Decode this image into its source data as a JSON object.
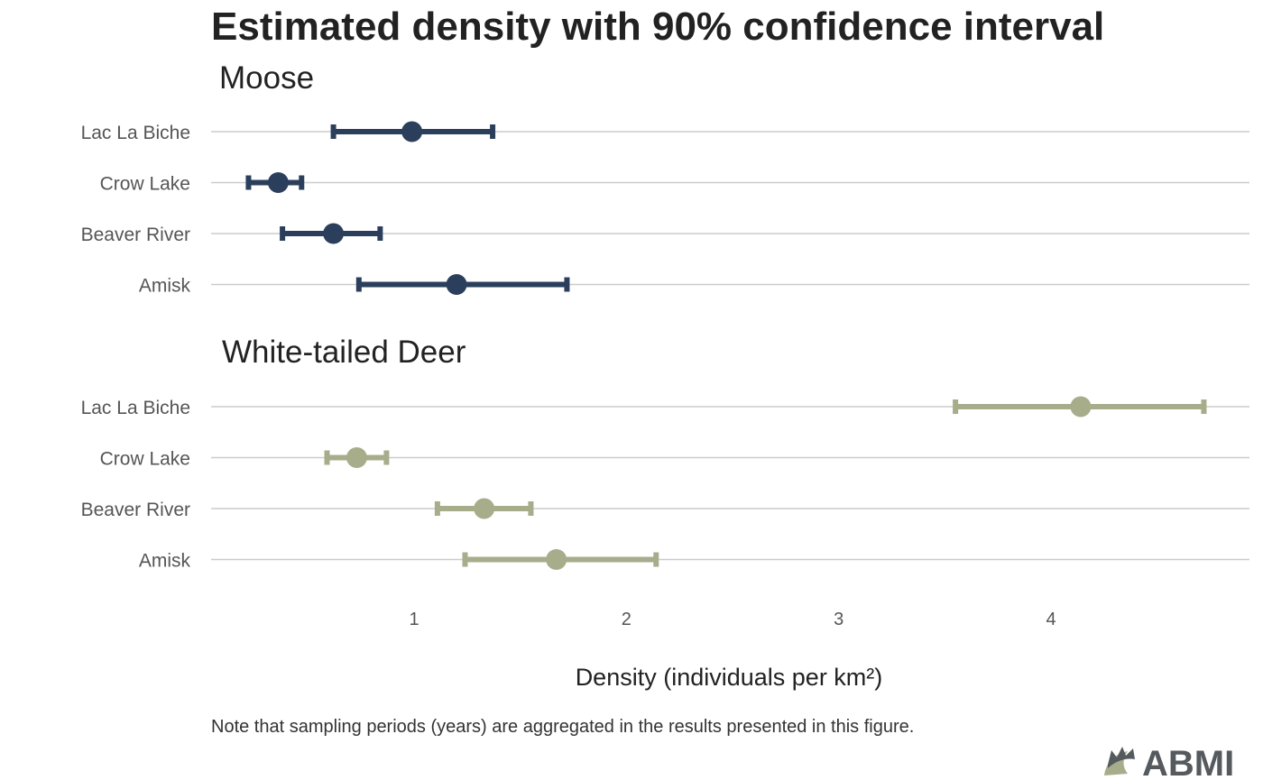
{
  "chart_data": {
    "type": "dot-errorbar",
    "title": "Estimated density with 90% confidence interval",
    "xlabel": "Density (individuals per km²)",
    "xticks": [
      1,
      2,
      3,
      4
    ],
    "xlim": [
      0.05,
      4.95
    ],
    "grid": "horizontal",
    "categories": [
      "Lac La Biche",
      "Crow Lake",
      "Beaver River",
      "Amisk"
    ],
    "facets": [
      {
        "name": "Moose",
        "color": "#2b3f5c",
        "points": [
          {
            "category": "Lac La Biche",
            "value": 0.99,
            "lower": 0.62,
            "upper": 1.37
          },
          {
            "category": "Crow Lake",
            "value": 0.36,
            "lower": 0.22,
            "upper": 0.47
          },
          {
            "category": "Beaver River",
            "value": 0.62,
            "lower": 0.38,
            "upper": 0.84
          },
          {
            "category": "Amisk",
            "value": 1.2,
            "lower": 0.74,
            "upper": 1.72
          }
        ]
      },
      {
        "name": "White-tailed Deer",
        "color": "#a7ad8b",
        "points": [
          {
            "category": "Lac La Biche",
            "value": 4.14,
            "lower": 3.55,
            "upper": 4.72
          },
          {
            "category": "Crow Lake",
            "value": 0.73,
            "lower": 0.59,
            "upper": 0.87
          },
          {
            "category": "Beaver River",
            "value": 1.33,
            "lower": 1.11,
            "upper": 1.55
          },
          {
            "category": "Amisk",
            "value": 1.67,
            "lower": 1.24,
            "upper": 2.14
          }
        ]
      }
    ]
  },
  "note": "Note that sampling periods (years) are aggregated in the results presented in this figure.",
  "logo": {
    "text": "ABMI",
    "icon": "abmi-logo-icon"
  }
}
